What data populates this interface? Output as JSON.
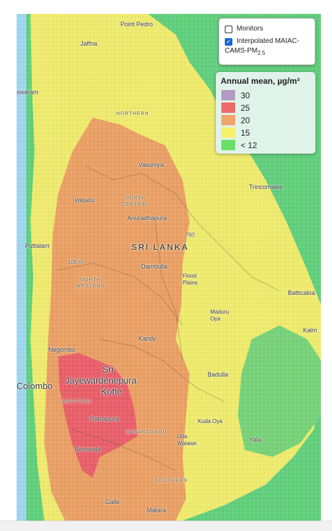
{
  "layers": {
    "monitors": {
      "label": "Monitors",
      "checked": false
    },
    "interpolated": {
      "label_prefix": "Interpolated MAIAC-",
      "label_main": "CAMS-PM",
      "label_sub": "2.5",
      "checked": true
    }
  },
  "legend": {
    "title": "Annual mean, µg/m³",
    "items": [
      {
        "label": "30",
        "color": "#b39ac0"
      },
      {
        "label": "25",
        "color": "#ee6a6a"
      },
      {
        "label": "20",
        "color": "#f2a56b"
      },
      {
        "label": "15",
        "color": "#f6f06c"
      },
      {
        "label": "< 12",
        "color": "#6ae06a"
      }
    ]
  },
  "colors": {
    "sea_green": "#62cf7d",
    "sea_blue": "#9fd6ef",
    "land_yellow": "#eeea6e",
    "land_orange": "#e9a066",
    "land_red": "#e8606a",
    "land_green": "#78d27a"
  },
  "places": {
    "point_pedro": "Point Pedro",
    "jaffna": "Jaffna",
    "swaram": "swaram",
    "northern": "NORTHERN",
    "vavuniya": "Vavuniya",
    "trincomalee": "Trincomalee",
    "wilpattu": "Wilpattu",
    "north_central": "NORTH\nCENTRAL",
    "anuradhapura": "Anuradhapura",
    "puttalam": "Puttalam",
    "sri_lanka": "SRI LANKA",
    "elev_760": "760",
    "elev_106": "106 m",
    "dambulla": "Dambulla",
    "north_western": "NORTH\nWESTERN",
    "flood_plains": "Flood\nPlains",
    "batticaloa": "Batticaloa",
    "maduru_oya": "Maduru\nOya",
    "kalm": "Kalm",
    "negombo": "Negombo",
    "kandy": "Kandy",
    "sri": "Sri",
    "jayewardenepura": "Jayewardenepura",
    "kotte": "Kotte",
    "colombo": "Colombo",
    "badulla": "Badulla",
    "western": "WESTERN",
    "ratnapura": "Ratnapura",
    "sabaragamuwa": "SABARAGAMU",
    "kuda_oya": "Kuda Oya",
    "uda_walawe": "Uda\nWalawe",
    "yala": "Yala",
    "beruwala": "Beruwala",
    "southern": "SOUTHERN",
    "galle": "Galle",
    "matara": "Matara"
  }
}
